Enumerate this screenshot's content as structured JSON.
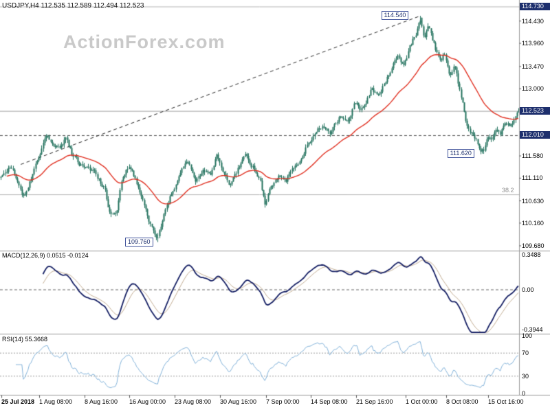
{
  "meta": {
    "title": "USDJPY,H4 112.535 112.589 112.494 112.523",
    "watermark": "ActionForex.com"
  },
  "chart_data": {
    "type": "candlestick",
    "title": "USDJPY,H4",
    "symbol": "USDJPY",
    "timeframe": "H4",
    "bars": 344,
    "ylim": [
      109.578,
      114.875
    ],
    "current_bar": {
      "open": 112.535,
      "high": 112.589,
      "low": 112.494,
      "close": 112.523
    },
    "price_axis": {
      "ticks": [
        114.43,
        113.96,
        113.47,
        113.0,
        111.58,
        111.11,
        110.63,
        110.16,
        109.68
      ],
      "tick_labels": [
        "114.430",
        "113.960",
        "113.470",
        "113.000",
        "111.580",
        "111.110",
        "110.630",
        "110.160",
        "109.680"
      ],
      "highlighted": [
        {
          "label": "114.730",
          "value": 114.73
        },
        {
          "label": "112.523",
          "value": 112.523
        },
        {
          "label": "112.010",
          "value": 112.01
        }
      ]
    },
    "time_axis": [
      {
        "label": "25 Jul 2018",
        "t": 0.003
      },
      {
        "label": "1 Aug 08:00",
        "t": 0.0755
      },
      {
        "label": "8 Aug 16:00",
        "t": 0.163
      },
      {
        "label": "16 Aug 00:00",
        "t": 0.249
      },
      {
        "label": "23 Aug 08:00",
        "t": 0.3364
      },
      {
        "label": "30 Aug 16:00",
        "t": 0.4238
      },
      {
        "label": "7 Sep 00:00",
        "t": 0.5126
      },
      {
        "label": "14 Sep 08:00",
        "t": 0.5987
      },
      {
        "label": "21 Sep 16:00",
        "t": 0.6861
      },
      {
        "label": "1 Oct 00:00",
        "t": 0.7815
      },
      {
        "label": "8 Oct 08:00",
        "t": 0.8596
      },
      {
        "label": "15 Oct 16:00",
        "t": 0.9404
      }
    ],
    "levels": {
      "peak": {
        "label": "114.540",
        "value": 114.54,
        "t": 0.81
      },
      "recent_low": {
        "label": "111.620",
        "value": 111.62,
        "t": 0.932
      },
      "major_low": {
        "label": "109.760",
        "value": 109.76,
        "t": 0.302
      },
      "current_price_line": 112.523,
      "dashed_level": 112.01,
      "top_level": 114.73,
      "fib": {
        "label": "38.2",
        "value": 110.76
      }
    },
    "trendline": {
      "t1": 0.04,
      "p1": 111.4,
      "t2": 0.81,
      "p2": 114.54
    },
    "moving_average": {
      "type": "EMA",
      "period": 40
    },
    "price_path_anchors": [
      [
        0.0,
        111.1
      ],
      [
        0.018,
        111.3
      ],
      [
        0.032,
        111.05
      ],
      [
        0.044,
        110.72
      ],
      [
        0.06,
        111.15
      ],
      [
        0.075,
        111.55
      ],
      [
        0.086,
        112.05
      ],
      [
        0.1,
        111.85
      ],
      [
        0.112,
        111.7
      ],
      [
        0.125,
        111.92
      ],
      [
        0.14,
        111.55
      ],
      [
        0.16,
        111.35
      ],
      [
        0.18,
        111.22
      ],
      [
        0.2,
        110.9
      ],
      [
        0.212,
        110.28
      ],
      [
        0.224,
        110.45
      ],
      [
        0.236,
        111.15
      ],
      [
        0.249,
        111.35
      ],
      [
        0.265,
        110.9
      ],
      [
        0.281,
        110.4
      ],
      [
        0.294,
        110.02
      ],
      [
        0.302,
        109.8
      ],
      [
        0.315,
        110.32
      ],
      [
        0.328,
        110.75
      ],
      [
        0.347,
        111.22
      ],
      [
        0.36,
        111.42
      ],
      [
        0.377,
        111.1
      ],
      [
        0.391,
        111.32
      ],
      [
        0.404,
        111.18
      ],
      [
        0.417,
        111.55
      ],
      [
        0.43,
        111.18
      ],
      [
        0.444,
        110.96
      ],
      [
        0.457,
        111.28
      ],
      [
        0.473,
        111.7
      ],
      [
        0.487,
        111.38
      ],
      [
        0.5,
        111.08
      ],
      [
        0.511,
        110.55
      ],
      [
        0.523,
        110.95
      ],
      [
        0.536,
        111.15
      ],
      [
        0.55,
        110.98
      ],
      [
        0.563,
        111.38
      ],
      [
        0.58,
        111.55
      ],
      [
        0.593,
        111.88
      ],
      [
        0.609,
        112.08
      ],
      [
        0.623,
        112.25
      ],
      [
        0.636,
        112.02
      ],
      [
        0.652,
        112.38
      ],
      [
        0.669,
        112.28
      ],
      [
        0.682,
        112.68
      ],
      [
        0.699,
        112.55
      ],
      [
        0.715,
        112.98
      ],
      [
        0.731,
        112.85
      ],
      [
        0.748,
        113.32
      ],
      [
        0.766,
        113.68
      ],
      [
        0.779,
        113.52
      ],
      [
        0.792,
        113.92
      ],
      [
        0.803,
        114.18
      ],
      [
        0.81,
        114.48
      ],
      [
        0.818,
        114.05
      ],
      [
        0.826,
        114.28
      ],
      [
        0.838,
        113.88
      ],
      [
        0.848,
        113.55
      ],
      [
        0.858,
        113.72
      ],
      [
        0.868,
        113.3
      ],
      [
        0.878,
        113.48
      ],
      [
        0.888,
        112.9
      ],
      [
        0.898,
        112.35
      ],
      [
        0.908,
        112.12
      ],
      [
        0.918,
        111.92
      ],
      [
        0.925,
        111.75
      ],
      [
        0.932,
        111.68
      ],
      [
        0.94,
        112.02
      ],
      [
        0.948,
        111.85
      ],
      [
        0.956,
        112.15
      ],
      [
        0.965,
        111.98
      ],
      [
        0.975,
        112.28
      ],
      [
        0.985,
        112.18
      ],
      [
        0.993,
        112.42
      ],
      [
        1.0,
        112.52
      ]
    ],
    "indicators": [
      {
        "name": "MACD",
        "label": "MACD(12,26,9) 0.0515 -0.0124",
        "params": [
          12,
          26,
          9
        ],
        "macd_value": 0.0515,
        "signal_value": -0.0124,
        "axis": [
          {
            "label": "0.3488",
            "value": 0.3488
          },
          {
            "label": "0.00",
            "value": 0
          },
          {
            "label": "-0.3944",
            "value": -0.3944
          }
        ]
      },
      {
        "name": "RSI",
        "label": "RSI(14) 55.3668",
        "period": 14,
        "value": 55.3668,
        "axis": [
          {
            "label": "100",
            "value": 100
          },
          {
            "label": "70",
            "value": 70
          },
          {
            "label": "30",
            "value": 30
          },
          {
            "label": "0",
            "value": 0
          }
        ],
        "guides": [
          70,
          30
        ]
      }
    ],
    "colors": {
      "candle": "#20705c",
      "ma": "#e02f20",
      "macd_line": "#141e63",
      "macd_signal": "#c0aa8f",
      "rsi_line": "#7fb0d8",
      "axis_highlight_bg": "#1d2f6d",
      "level_box_border": "#41539b",
      "watermark": "#c9c9c9",
      "grid_line": "#b5b5b5",
      "separator": "#9a9a9a"
    }
  }
}
